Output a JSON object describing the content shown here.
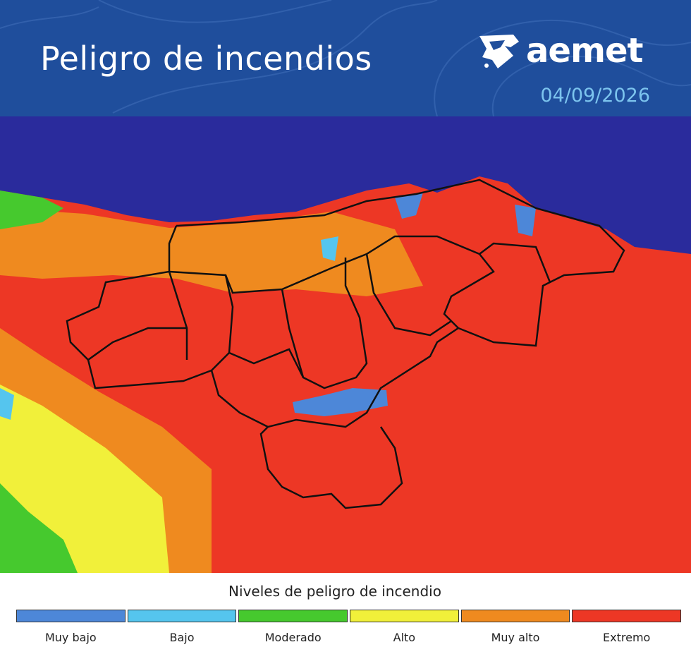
{
  "header": {
    "title": "Peligro de incendios",
    "brand": "aemet",
    "date": "04/09/2026"
  },
  "legend": {
    "title": "Niveles de peligro de incendio",
    "levels": [
      {
        "label": "Muy bajo",
        "color": "#4d87d8"
      },
      {
        "label": "Bajo",
        "color": "#55c5ee"
      },
      {
        "label": "Moderado",
        "color": "#46c92e"
      },
      {
        "label": "Alto",
        "color": "#f1f03a"
      },
      {
        "label": "Muy alto",
        "color": "#ef8a1f"
      },
      {
        "label": "Extremo",
        "color": "#ed3725"
      }
    ]
  }
}
